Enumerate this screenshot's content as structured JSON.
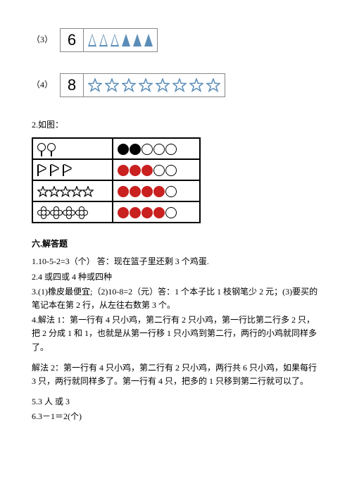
{
  "q3": {
    "label": "（3）",
    "number": "6",
    "triangles": [
      0,
      0,
      0,
      1,
      1,
      1
    ]
  },
  "q4": {
    "label": "（4）",
    "number": "8",
    "stars": 8,
    "star_color": "#5b8db8"
  },
  "q2_intro": "2.如图：",
  "grid": {
    "rows": [
      {
        "left_type": "lolli",
        "left_count": 2,
        "right": [
          1,
          1,
          0,
          0,
          0
        ]
      },
      {
        "left_type": "flag",
        "left_count": 3,
        "right": [
          2,
          2,
          2,
          0,
          0
        ]
      },
      {
        "left_type": "star",
        "left_count": 5,
        "right": [
          2,
          2,
          2,
          2,
          0
        ]
      },
      {
        "left_type": "flower",
        "left_count": 4,
        "right": [
          2,
          2,
          2,
          2,
          0
        ]
      }
    ]
  },
  "section6": "六.解答题",
  "ans": {
    "a1": "1.10-5-2=3（个）    答：现在篮子里还剩 3 个鸡蛋.",
    "a2": "2.4 或四或 4 种或四种",
    "a3": "3.(1)橡皮最便宜;（2)10-8=2（元）答：1 个本子比 1 枝钢笔少 2 元；(3)要买的笔记本在第 2 行，从左往右数第 3 个。",
    "a4a": "4.解法 1：第一行有 4 只小鸡，第二行有 2 只小鸡，第一行比第二行多 2 只，把 2 分成 1 和 1，也就是从第一行移 1 只小鸡到第二行，两行的小鸡就同样多了。",
    "a4b": "解法 2：第一行有 4 只小鸡，第二行有 2 只小鸡，两行共 6 只小鸡，如果每行3 只，两行就同样多了。第一行有 4 只，把多的 1 只移到第二行就可以了。",
    "a5": "5.3 人 或 3",
    "a6": "6.3－1＝2(个)"
  }
}
